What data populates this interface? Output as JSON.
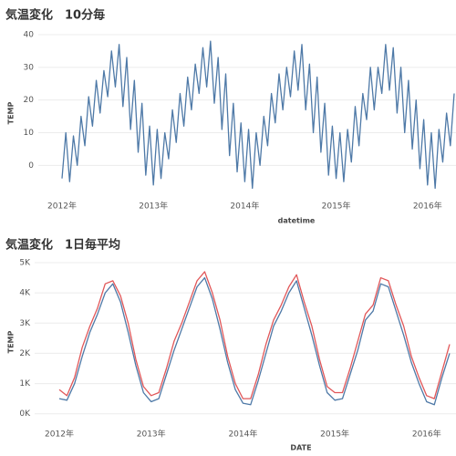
{
  "chart_data": [
    {
      "type": "line",
      "title": "気温変化　10分毎",
      "x_label": "datetime",
      "y_label": "TEMP",
      "categories": [
        "2012年",
        null,
        null,
        null,
        null,
        null,
        null,
        null,
        null,
        null,
        null,
        null,
        null,
        null,
        null,
        null,
        null,
        null,
        null,
        null,
        null,
        null,
        null,
        null,
        "2013年",
        null,
        null,
        null,
        null,
        null,
        null,
        null,
        null,
        null,
        null,
        null,
        null,
        null,
        null,
        null,
        null,
        null,
        null,
        null,
        null,
        null,
        null,
        null,
        "2014年",
        null,
        null,
        null,
        null,
        null,
        null,
        null,
        null,
        null,
        null,
        null,
        null,
        null,
        null,
        null,
        null,
        null,
        null,
        null,
        null,
        null,
        null,
        null,
        "2015年",
        null,
        null,
        null,
        null,
        null,
        null,
        null,
        null,
        null,
        null,
        null,
        null,
        null,
        null,
        null,
        null,
        null,
        null,
        null,
        null,
        null,
        null,
        null,
        "2016年",
        null,
        null,
        null,
        null,
        null,
        null,
        null
      ],
      "series": [
        {
          "color": "#4e79a7",
          "values": [
            -4,
            10,
            -5,
            9,
            0,
            15,
            6,
            21,
            12,
            26,
            16,
            29,
            21,
            35,
            24,
            37,
            18,
            33,
            11,
            26,
            4,
            19,
            -3,
            12,
            -6,
            11,
            -4,
            10,
            2,
            17,
            7,
            22,
            12,
            27,
            17,
            31,
            22,
            36,
            24,
            38,
            19,
            33,
            11,
            28,
            3,
            19,
            -2,
            13,
            -5,
            11,
            -7,
            10,
            0,
            15,
            6,
            22,
            13,
            28,
            17,
            30,
            21,
            35,
            23,
            37,
            17,
            31,
            10,
            27,
            4,
            19,
            -3,
            12,
            -4,
            10,
            -5,
            11,
            1,
            18,
            6,
            22,
            14,
            30,
            17,
            30,
            22,
            37,
            23,
            36,
            16,
            30,
            10,
            26,
            5,
            20,
            -1,
            14,
            -6,
            10,
            -7,
            11,
            1,
            16,
            6,
            22
          ]
        }
      ],
      "ylim": [
        -8,
        40
      ],
      "yticks": [
        0,
        10,
        20,
        30,
        40
      ],
      "grid": true
    },
    {
      "type": "line",
      "title": "気温変化　1日毎平均",
      "x_label": "DATE",
      "y_label": "TEMP",
      "categories": [
        "2012年",
        null,
        null,
        null,
        null,
        null,
        null,
        null,
        null,
        null,
        null,
        null,
        "2013年",
        null,
        null,
        null,
        null,
        null,
        null,
        null,
        null,
        null,
        null,
        null,
        "2014年",
        null,
        null,
        null,
        null,
        null,
        null,
        null,
        null,
        null,
        null,
        null,
        "2015年",
        null,
        null,
        null,
        null,
        null,
        null,
        null,
        null,
        null,
        null,
        null,
        "2016年",
        null,
        null,
        null
      ],
      "series": [
        {
          "color": "#e15759",
          "values": [
            800,
            600,
            1200,
            2200,
            2900,
            3500,
            4300,
            4400,
            3900,
            3000,
            1800,
            900,
            600,
            700,
            1500,
            2400,
            3000,
            3700,
            4400,
            4700,
            4000,
            3100,
            1900,
            1000,
            500,
            500,
            1300,
            2300,
            3100,
            3600,
            4200,
            4600,
            3700,
            2900,
            1800,
            900,
            700,
            700,
            1500,
            2400,
            3300,
            3600,
            4500,
            4400,
            3600,
            2900,
            1900,
            1200,
            600,
            500,
            1400,
            2300
          ]
        },
        {
          "color": "#4e79a7",
          "values": [
            500,
            450,
            1000,
            1900,
            2700,
            3300,
            4000,
            4300,
            3700,
            2700,
            1600,
            700,
            400,
            500,
            1300,
            2100,
            2800,
            3500,
            4200,
            4500,
            3800,
            2800,
            1700,
            800,
            350,
            300,
            1100,
            2000,
            2900,
            3400,
            4000,
            4400,
            3500,
            2600,
            1600,
            700,
            450,
            500,
            1300,
            2100,
            3100,
            3400,
            4300,
            4200,
            3400,
            2600,
            1700,
            1000,
            400,
            300,
            1200,
            2000
          ]
        }
      ],
      "ylim": [
        -250,
        5000
      ],
      "yticks": [
        {
          "value": 0,
          "label": "0K"
        },
        {
          "value": 1000,
          "label": "1K"
        },
        {
          "value": 2000,
          "label": "2K"
        },
        {
          "value": 3000,
          "label": "3K"
        },
        {
          "value": 4000,
          "label": "4K"
        },
        {
          "value": 5000,
          "label": "5K"
        }
      ],
      "grid": true
    }
  ]
}
